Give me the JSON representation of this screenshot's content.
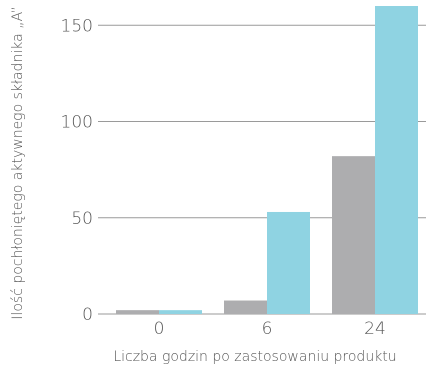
{
  "chart_data": {
    "type": "bar",
    "title": "",
    "xlabel": "Liczba godzin po zastosowaniu produktu",
    "ylabel": "Ilość pochłoniętego aktywnego składnika „A”",
    "categories": [
      "0",
      "6",
      "24"
    ],
    "series": [
      {
        "values": [
          2,
          7,
          82
        ]
      },
      {
        "values": [
          2,
          53,
          160
        ]
      }
    ],
    "ylim": [
      0,
      160
    ],
    "yticks": [
      0,
      50,
      100,
      150
    ],
    "grid": true,
    "legend": "none",
    "colors": {
      "series": [
        "#adadaf",
        "#8fd3e2"
      ],
      "grid": "#9a9a9a",
      "text": "#555555"
    }
  }
}
